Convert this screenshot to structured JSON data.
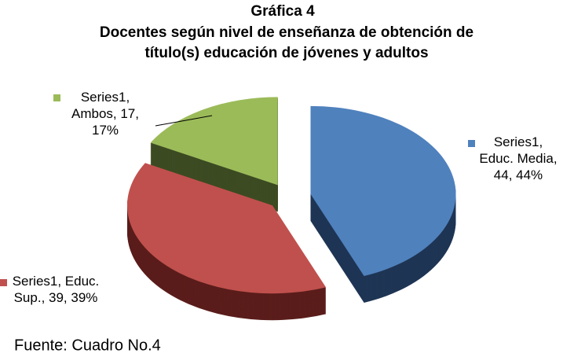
{
  "chart_data": {
    "type": "pie3d",
    "title": "Gráfica 4",
    "subtitle": "Docentes según nivel de enseñanza de obtención de título(s) educación de jóvenes y adultos",
    "series_name": "Series1",
    "categories": [
      "Educ. Media",
      "Educ. Sup.",
      "Ambos"
    ],
    "values": [
      44,
      39,
      17
    ],
    "value_labels": [
      "Series1, Educ. Media, 44, 44%",
      "Series1, Educ. Sup., 39, 39%",
      "Series1, Ambos, 17, 17%"
    ],
    "colors": [
      "#4f81bd",
      "#c0504d",
      "#9bbb59"
    ],
    "side_colors": [
      "#1f3554",
      "#5a1d1b",
      "#3c4b22"
    ],
    "source": "Fuente: Cuadro No.4"
  }
}
